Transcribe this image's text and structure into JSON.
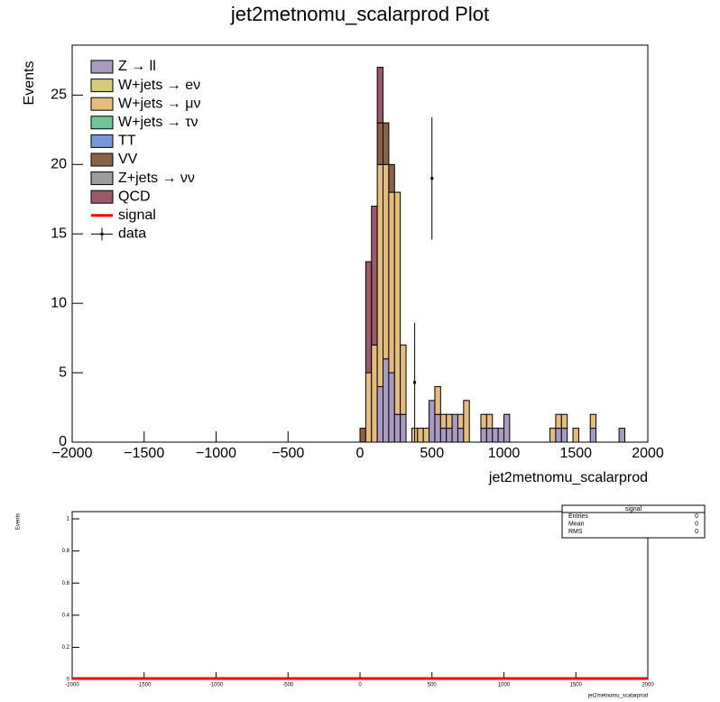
{
  "chart_data": [
    {
      "type": "histogram",
      "title": "jet2metnomu_scalarprod Plot",
      "x_label": "jet2metnomu_scalarprod",
      "y_label": "Events",
      "xlim": [
        -2000,
        2000
      ],
      "ylim": [
        0,
        28.6
      ],
      "xticks": [
        {
          "value": -2000,
          "label": "−2000"
        },
        {
          "value": -1500,
          "label": "−1500"
        },
        {
          "value": -1000,
          "label": "−1000"
        },
        {
          "value": -500,
          "label": "−500"
        },
        0,
        500,
        1000,
        1500,
        2000
      ],
      "yticks": [
        0,
        5,
        10,
        15,
        20,
        25
      ],
      "bins": [
        0,
        40,
        80,
        120,
        160,
        200,
        240,
        280,
        320,
        360,
        400,
        440,
        480,
        520,
        560,
        600,
        640,
        680,
        720,
        760,
        800,
        840,
        880,
        920,
        960,
        1000,
        1040,
        1080,
        1120,
        1160,
        1200,
        1240,
        1280,
        1320,
        1360,
        1400,
        1440,
        1480,
        1520,
        1560,
        1600,
        1640,
        1680,
        1720,
        1760,
        1800,
        1840
      ],
      "stacked": true,
      "series": [
        {
          "name": "Z → ll",
          "color": "#a99bc0",
          "values": [
            0,
            0,
            0,
            4,
            6,
            5,
            2,
            2,
            0,
            0,
            0,
            0,
            3,
            2,
            1,
            1,
            2,
            1,
            0,
            0,
            0,
            1,
            1,
            1,
            1,
            2,
            0,
            0,
            0,
            0,
            0,
            0,
            0,
            0,
            1,
            1,
            0,
            0,
            0,
            0,
            1,
            0,
            0,
            0,
            0,
            1
          ]
        },
        {
          "name": "W+jets → eν",
          "color": "#d4cc7c",
          "values": [
            0,
            0,
            0,
            0,
            0,
            0,
            0,
            0,
            0,
            0,
            0,
            0,
            0,
            0,
            0,
            0,
            0,
            0,
            0,
            0,
            0,
            0,
            0,
            0,
            0,
            0,
            0,
            0,
            0,
            0,
            0,
            0,
            0,
            0,
            0,
            0,
            0,
            0,
            0,
            0,
            0,
            0,
            0,
            0,
            0,
            0
          ]
        },
        {
          "name": "W+jets → μν",
          "color": "#e3bc80",
          "values": [
            0,
            5,
            7,
            16,
            14,
            13,
            16,
            5,
            0,
            1,
            1,
            1,
            0,
            2,
            1,
            1,
            0,
            1,
            3,
            0,
            0,
            1,
            1,
            0,
            0,
            0,
            0,
            0,
            0,
            0,
            0,
            0,
            0,
            1,
            1,
            1,
            0,
            1,
            0,
            0,
            1,
            0,
            0,
            0,
            0,
            0
          ]
        },
        {
          "name": "W+jets → τν",
          "color": "#6fc698",
          "values": [
            0,
            0,
            0,
            0,
            0,
            0,
            0,
            0,
            0,
            0,
            0,
            0,
            0,
            0,
            0,
            0,
            0,
            0,
            0,
            0,
            0,
            0,
            0,
            0,
            0,
            0,
            0,
            0,
            0,
            0,
            0,
            0,
            0,
            0,
            0,
            0,
            0,
            0,
            0,
            0,
            0,
            0,
            0,
            0,
            0,
            0
          ]
        },
        {
          "name": "TT",
          "color": "#7797d8",
          "values": [
            0,
            0,
            0,
            0,
            0,
            0,
            0,
            0,
            0,
            0,
            0,
            0,
            0,
            0,
            0,
            0,
            0,
            0,
            0,
            0,
            0,
            0,
            0,
            0,
            0,
            0,
            0,
            0,
            0,
            0,
            0,
            0,
            0,
            0,
            0,
            0,
            0,
            0,
            0,
            0,
            0,
            0,
            0,
            0,
            0,
            0
          ]
        },
        {
          "name": "VV",
          "color": "#8c6246",
          "values": [
            1,
            0,
            0,
            3,
            3,
            2,
            0,
            0,
            0,
            0,
            0,
            0,
            0,
            0,
            0,
            0,
            0,
            0,
            0,
            0,
            0,
            0,
            0,
            0,
            0,
            0,
            0,
            0,
            0,
            0,
            0,
            0,
            0,
            0,
            0,
            0,
            0,
            0,
            0,
            0,
            0,
            0,
            0,
            0,
            0,
            0
          ]
        },
        {
          "name": "Z+jets → νν",
          "color": "#9c9c9c",
          "values": [
            0,
            0,
            0,
            0,
            0,
            0,
            0,
            0,
            0,
            0,
            0,
            0,
            0,
            0,
            0,
            0,
            0,
            0,
            0,
            0,
            0,
            0,
            0,
            0,
            0,
            0,
            0,
            0,
            0,
            0,
            0,
            0,
            0,
            0,
            0,
            0,
            0,
            0,
            0,
            0,
            0,
            0,
            0,
            0,
            0,
            0
          ]
        },
        {
          "name": "QCD",
          "color": "#9a5a6a",
          "values": [
            0,
            8,
            10,
            4,
            0,
            0,
            0,
            0,
            0,
            0,
            0,
            0,
            0,
            0,
            0,
            0,
            0,
            0,
            0,
            0,
            0,
            0,
            0,
            0,
            0,
            0,
            0,
            0,
            0,
            0,
            0,
            0,
            0,
            0,
            0,
            0,
            0,
            0,
            0,
            0,
            0,
            0,
            0,
            0,
            0,
            0
          ]
        }
      ],
      "data": {
        "name": "data",
        "color": "#000000",
        "x": [
          380,
          500
        ],
        "values": [
          4.3,
          19
        ],
        "errors": [
          4.3,
          4.4
        ]
      }
    },
    {
      "type": "line",
      "x_label": "jet2metnomu_scalarprod",
      "y_label": "Events",
      "xlim": [
        -2000,
        2000
      ],
      "ylim": [
        0,
        1.045
      ],
      "xticks": [
        -2000,
        -1500,
        -1000,
        -500,
        0,
        500,
        1000,
        1500,
        2000
      ],
      "yticks": [
        0,
        0.2,
        0.4,
        0.6,
        0.8,
        1
      ],
      "x": [
        -2000,
        2000
      ],
      "series": [
        {
          "name": "signal",
          "color": "#ff0000",
          "values": [
            0,
            0
          ]
        }
      ],
      "stats": {
        "rows": [
          [
            "Entries",
            0
          ],
          [
            "Mean",
            0
          ],
          [
            "RMS",
            0
          ]
        ]
      }
    }
  ]
}
